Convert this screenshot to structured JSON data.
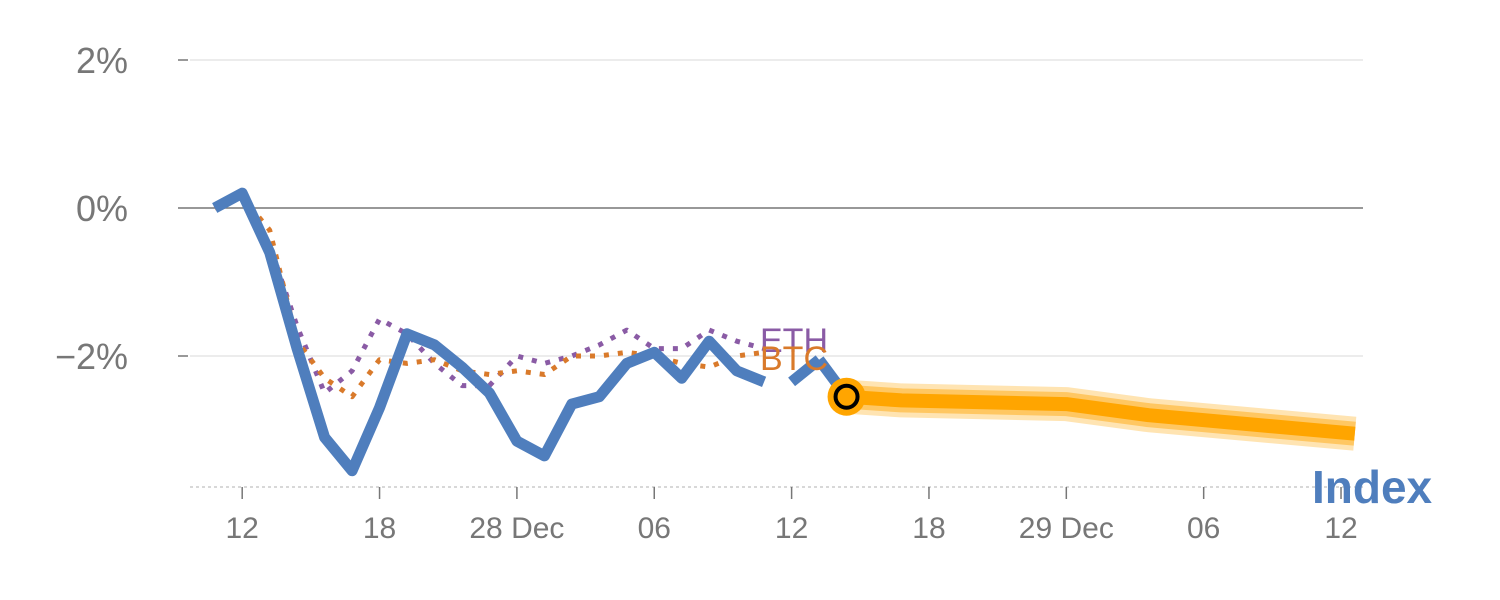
{
  "chart_data": {
    "type": "line",
    "title": "",
    "xlabel": "",
    "ylabel": "",
    "ylim": [
      -3.75,
      2.2
    ],
    "yticks": [
      2,
      0,
      -2
    ],
    "ytick_labels": [
      "2%",
      "0%",
      "−2%"
    ],
    "x_range": [
      -0.9,
      41.8
    ],
    "xticks": [
      {
        "x": 1,
        "label": "12"
      },
      {
        "x": 6,
        "label": "18"
      },
      {
        "x": 11,
        "label": "28 Dec"
      },
      {
        "x": 16,
        "label": "06"
      },
      {
        "x": 21,
        "label": "12"
      },
      {
        "x": 26,
        "label": "18"
      },
      {
        "x": 31,
        "label": "29 Dec"
      },
      {
        "x": 36,
        "label": "06"
      },
      {
        "x": 41,
        "label": "12"
      }
    ],
    "series": [
      {
        "name": "ETH",
        "color": "#8a5ba5",
        "style": "dotted",
        "x": [
          0,
          1,
          2,
          3,
          4,
          5,
          6,
          7,
          8,
          9,
          10,
          11,
          12,
          13,
          14,
          15,
          16,
          17,
          18,
          19,
          20
        ],
        "values": [
          0.0,
          0.2,
          -0.5,
          -1.6,
          -2.5,
          -2.2,
          -1.5,
          -1.7,
          -2.1,
          -2.4,
          -2.4,
          -2.0,
          -2.1,
          -2.0,
          -1.85,
          -1.65,
          -1.9,
          -1.9,
          -1.65,
          -1.8,
          -1.9
        ]
      },
      {
        "name": "BTC",
        "color": "#d97a2b",
        "style": "dotted",
        "x": [
          0,
          1,
          2,
          3,
          4,
          5,
          6,
          7,
          8,
          9,
          10,
          11,
          12,
          13,
          14,
          15,
          16,
          17,
          18,
          19,
          20
        ],
        "values": [
          0.0,
          0.15,
          -0.3,
          -1.8,
          -2.3,
          -2.55,
          -2.05,
          -2.1,
          -2.05,
          -2.2,
          -2.25,
          -2.2,
          -2.25,
          -2.0,
          -2.0,
          -1.95,
          -2.0,
          -2.1,
          -2.15,
          -2.0,
          -1.95
        ]
      },
      {
        "name": "Index",
        "color": "#4f7ebd",
        "style": "solid",
        "x": [
          0,
          1,
          2,
          3,
          4,
          5,
          6,
          7,
          8,
          9,
          10,
          11,
          12,
          13,
          14,
          15,
          16,
          17,
          18,
          19,
          20
        ],
        "values": [
          0.0,
          0.2,
          -0.6,
          -1.9,
          -3.1,
          -3.55,
          -2.7,
          -1.7,
          -1.85,
          -2.15,
          -2.5,
          -3.15,
          -3.35,
          -2.65,
          -2.55,
          -2.1,
          -1.95,
          -2.3,
          -1.8,
          -2.2,
          -2.35
        ]
      }
    ],
    "extra_series_points": [
      {
        "name": "Index",
        "x": [
          21,
          22
        ],
        "values": [
          -2.35,
          -2.05
        ]
      },
      {
        "name": "Index",
        "x": [
          22,
          23
        ],
        "values": [
          -2.05,
          -2.55
        ]
      }
    ],
    "forecast": {
      "name": "Index forecast",
      "color": "#ffa500",
      "x": [
        23,
        25,
        31,
        34,
        41.5
      ],
      "values": [
        -2.55,
        -2.6,
        -2.65,
        -2.8,
        -3.05
      ]
    },
    "marker": {
      "x": 23,
      "value": -2.55
    },
    "labels": {
      "eth": "ETH",
      "btc": "BTC",
      "index": "Index"
    }
  }
}
